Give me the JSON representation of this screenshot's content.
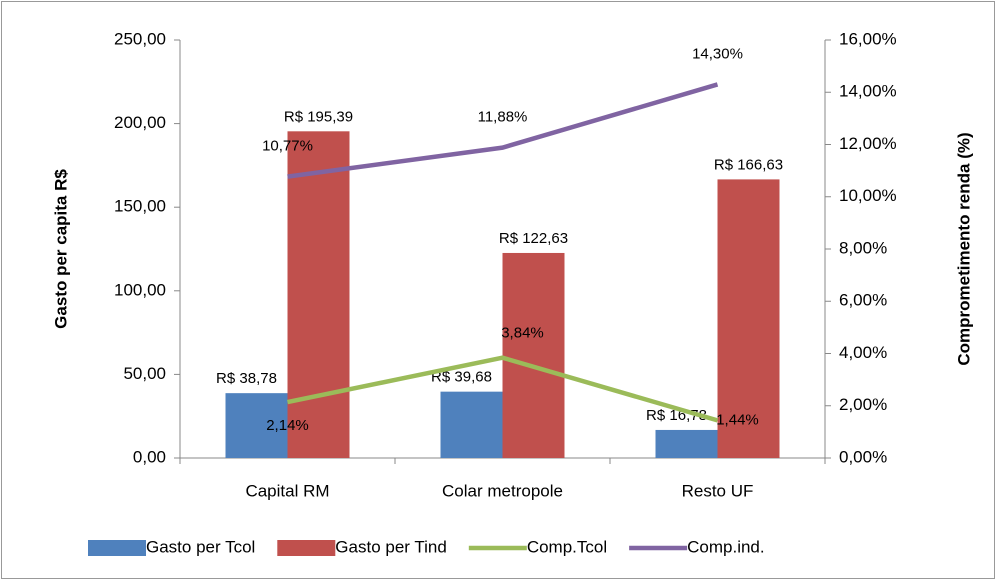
{
  "chart_data": {
    "type": "bar-line",
    "categories": [
      "Capital RM",
      "Colar metropole",
      "Resto UF"
    ],
    "y_label": "Gasto per capita  R$",
    "y2_label": "Comprometimento renda (%)",
    "ylim": [
      0,
      250
    ],
    "yticks": [
      {
        "value": 0,
        "label": "0,00"
      },
      {
        "value": 50,
        "label": "50,00"
      },
      {
        "value": 100,
        "label": "100,00"
      },
      {
        "value": 150,
        "label": "150,00"
      },
      {
        "value": 200,
        "label": "200,00"
      },
      {
        "value": 250,
        "label": "250,00"
      }
    ],
    "y2lim": [
      0,
      16
    ],
    "y2ticks": [
      {
        "value": 0,
        "label": "0,00%"
      },
      {
        "value": 2,
        "label": "2,00%"
      },
      {
        "value": 4,
        "label": "4,00%"
      },
      {
        "value": 6,
        "label": "6,00%"
      },
      {
        "value": 8,
        "label": "8,00%"
      },
      {
        "value": 10,
        "label": "10,00%"
      },
      {
        "value": 12,
        "label": "12,00%"
      },
      {
        "value": 14,
        "label": "14,00%"
      },
      {
        "value": 16,
        "label": "16,00%"
      }
    ],
    "legend": "bottom",
    "series": [
      {
        "name": "Gasto per Tcol",
        "type": "bar",
        "color": "#4f81bd",
        "values": [
          38.78,
          39.68,
          16.78
        ],
        "value_labels": [
          "R$ 38,78",
          "R$ 39,68",
          "R$ 16,78"
        ]
      },
      {
        "name": "Gasto per Tind",
        "type": "bar",
        "color": "#c0504d",
        "values": [
          195.39,
          122.63,
          166.63
        ],
        "value_labels": [
          "R$ 195,39",
          "R$ 122,63",
          "R$ 166,63"
        ]
      },
      {
        "name": "Comp.Tcol",
        "type": "line",
        "axis": "y2",
        "color": "#9bbb59",
        "values": [
          2.14,
          3.84,
          1.44
        ],
        "value_labels": [
          "2,14%",
          "3,84%",
          "1,44%"
        ]
      },
      {
        "name": "Comp.ind.",
        "type": "line",
        "axis": "y2",
        "color": "#8064a2",
        "values": [
          10.77,
          11.88,
          14.3
        ],
        "value_labels": [
          "10,77%",
          "11,88%",
          "14,30%"
        ]
      }
    ]
  }
}
